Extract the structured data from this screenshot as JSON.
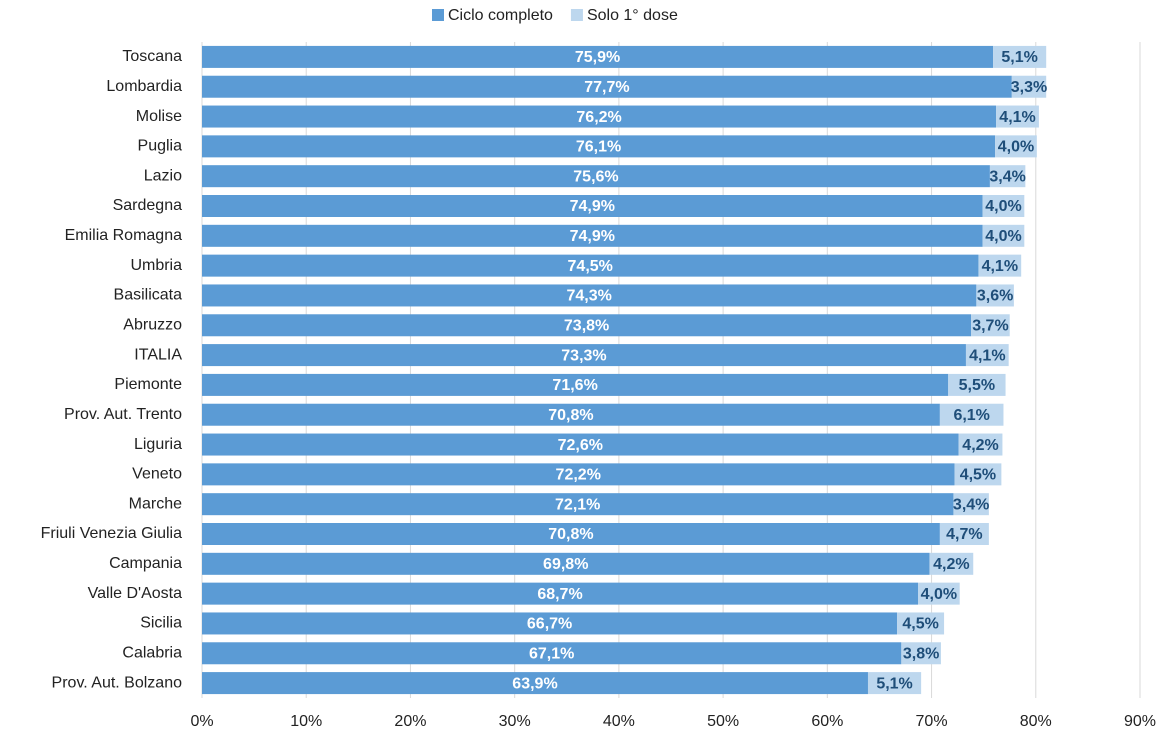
{
  "chart_data": {
    "type": "stacked_barh",
    "categories": [
      "Toscana",
      "Lombardia",
      "Molise",
      "Puglia",
      "Lazio",
      "Sardegna",
      "Emilia Romagna",
      "Umbria",
      "Basilicata",
      "Abruzzo",
      "ITALIA",
      "Piemonte",
      "Prov. Aut. Trento",
      "Liguria",
      "Veneto",
      "Marche",
      "Friuli Venezia Giulia",
      "Campania",
      "Valle D'Aosta",
      "Sicilia",
      "Calabria",
      "Prov. Aut. Bolzano"
    ],
    "series": [
      {
        "name": "Ciclo completo",
        "color": "#5b9bd5",
        "label_color": "#ffffff",
        "values": [
          75.9,
          77.7,
          76.2,
          76.1,
          75.6,
          74.9,
          74.9,
          74.5,
          74.3,
          73.8,
          73.3,
          71.6,
          70.8,
          72.6,
          72.2,
          72.1,
          70.8,
          69.8,
          68.7,
          66.7,
          67.1,
          63.9
        ],
        "value_labels": [
          "75,9%",
          "77,7%",
          "76,2%",
          "76,1%",
          "75,6%",
          "74,9%",
          "74,9%",
          "74,5%",
          "74,3%",
          "73,8%",
          "73,3%",
          "71,6%",
          "70,8%",
          "72,6%",
          "72,2%",
          "72,1%",
          "70,8%",
          "69,8%",
          "68,7%",
          "66,7%",
          "67,1%",
          "63,9%"
        ]
      },
      {
        "name": "Solo 1° dose",
        "color": "#bdd7ee",
        "label_color": "#1f4e79",
        "values": [
          5.1,
          3.3,
          4.1,
          4.0,
          3.4,
          4.0,
          4.0,
          4.1,
          3.6,
          3.7,
          4.1,
          5.5,
          6.1,
          4.2,
          4.5,
          3.4,
          4.7,
          4.2,
          4.0,
          4.5,
          3.8,
          5.1
        ],
        "value_labels": [
          "5,1%",
          "3,3%",
          "4,1%",
          "4,0%",
          "3,4%",
          "4,0%",
          "4,0%",
          "4,1%",
          "3,6%",
          "3,7%",
          "4,1%",
          "5,5%",
          "6,1%",
          "4,2%",
          "4,5%",
          "3,4%",
          "4,7%",
          "4,2%",
          "4,0%",
          "4,5%",
          "3,8%",
          "5,1%"
        ]
      }
    ],
    "xlim": [
      0,
      90
    ],
    "xticks": [
      {
        "value": 0,
        "label": "0%"
      },
      {
        "value": 10,
        "label": "10%"
      },
      {
        "value": 20,
        "label": "20%"
      },
      {
        "value": 30,
        "label": "30%"
      },
      {
        "value": 40,
        "label": "40%"
      },
      {
        "value": 50,
        "label": "50%"
      },
      {
        "value": 60,
        "label": "60%"
      },
      {
        "value": 70,
        "label": "70%"
      },
      {
        "value": 80,
        "label": "80%"
      },
      {
        "value": 90,
        "label": "90%"
      }
    ],
    "grid": true,
    "legend": "top"
  }
}
